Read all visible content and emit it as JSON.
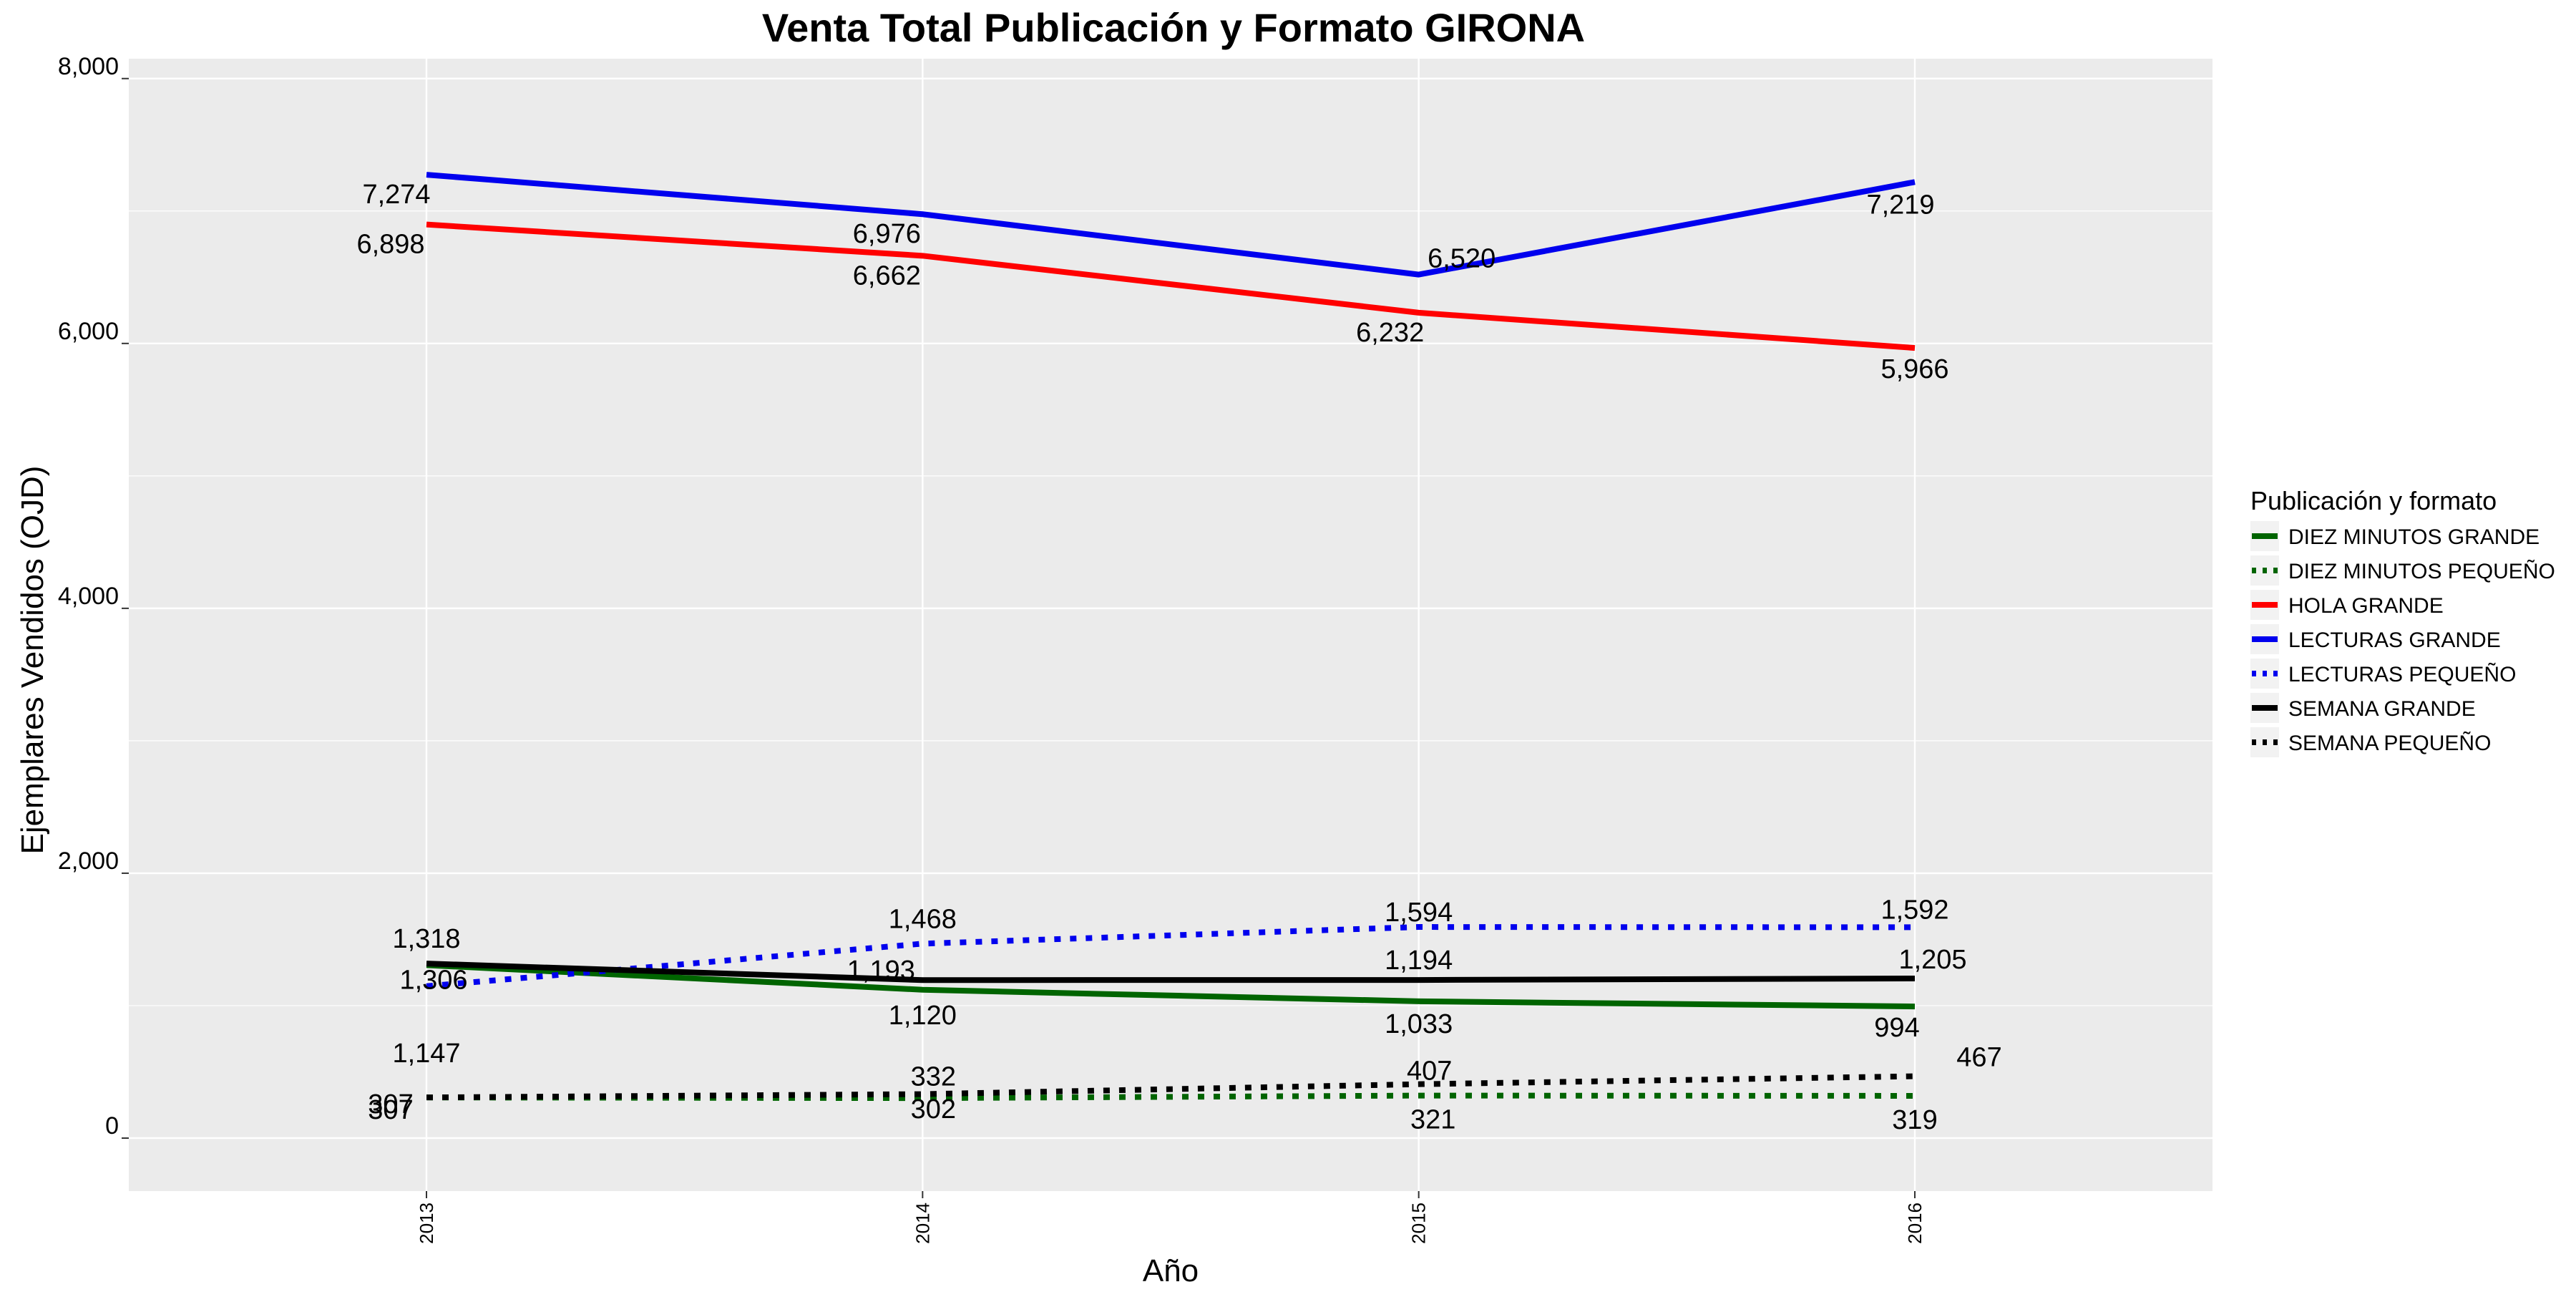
{
  "chart_data": {
    "type": "line",
    "title": "Venta Total Publicación y Formato  GIRONA",
    "xlabel": "Año",
    "ylabel": "Ejemplares Vendidos (OJD)",
    "x": [
      "2013",
      "2014",
      "2015",
      "2016"
    ],
    "ylim": [
      -400,
      8150
    ],
    "xlim": [
      2012.4,
      2016.6
    ],
    "yticks": [
      0,
      2000,
      4000,
      6000,
      8000
    ],
    "ytick_labels": [
      "0",
      "2,000",
      "4,000",
      "6,000",
      "8,000"
    ],
    "grid": true,
    "legend": {
      "title": "Publicación y formato",
      "placement": "right"
    },
    "series": [
      {
        "name": "DIEZ MINUTOS GRANDE",
        "color": "#006400",
        "dash": "solid",
        "values": [
          1306,
          1120,
          1033,
          994
        ],
        "labels": [
          "1,306",
          "1,120",
          "1,033",
          "994"
        ]
      },
      {
        "name": "DIEZ MINUTOS PEQUEÑO",
        "color": "#006400",
        "dash": "dotted",
        "values": [
          307,
          302,
          321,
          319
        ],
        "labels": [
          "307",
          "302",
          "321",
          "319"
        ]
      },
      {
        "name": "HOLA GRANDE",
        "color": "#ff0000",
        "dash": "solid",
        "values": [
          6898,
          6662,
          6232,
          5966
        ],
        "labels": [
          "6,898",
          "6,662",
          "6,232",
          "5,966"
        ]
      },
      {
        "name": "LECTURAS GRANDE",
        "color": "#0000ee",
        "dash": "solid",
        "values": [
          7274,
          6976,
          6520,
          7219
        ],
        "labels": [
          "7,274",
          "6,976",
          "6,520",
          "7,219"
        ]
      },
      {
        "name": "LECTURAS PEQUEÑO",
        "color": "#0000ee",
        "dash": "dotted",
        "values": [
          1147,
          1468,
          1594,
          1592
        ],
        "labels": [
          "1,147",
          "1,468",
          "1,594",
          "1,592"
        ]
      },
      {
        "name": "SEMANA GRANDE",
        "color": "#000000",
        "dash": "solid",
        "values": [
          1318,
          1193,
          1194,
          1205
        ],
        "labels": [
          "1,318",
          "1,193",
          "1,194",
          "1,205"
        ]
      },
      {
        "name": "SEMANA PEQUEÑO",
        "color": "#000000",
        "dash": "dotted",
        "values": [
          307,
          332,
          407,
          467
        ],
        "labels": [
          "307",
          "332",
          "407",
          "467"
        ]
      }
    ]
  }
}
